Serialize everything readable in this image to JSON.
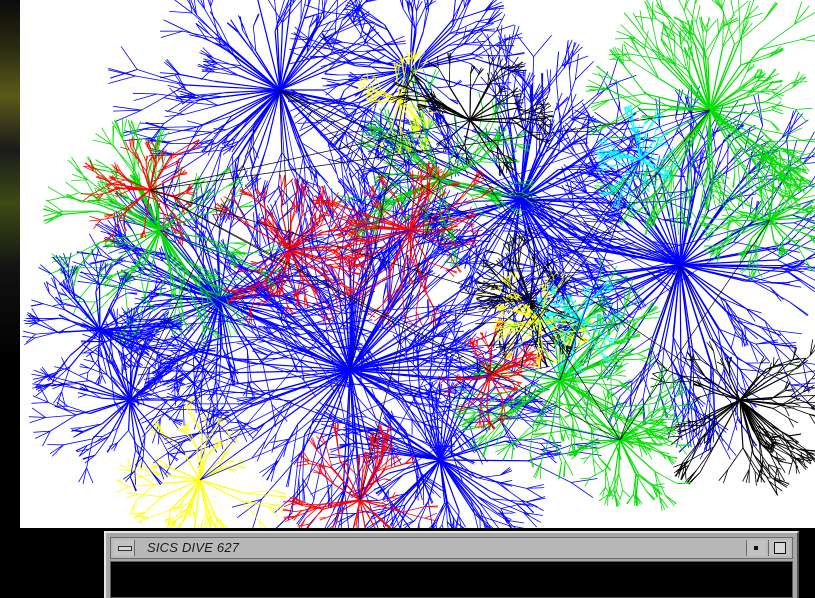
{
  "desktop": {
    "background_color": "#000000"
  },
  "visualization": {
    "background_color": "#ffffff",
    "palette": [
      "#0000ff",
      "#00dd00",
      "#ff0000",
      "#000000",
      "#ffff00",
      "#00ffff",
      "#c0c0c0"
    ]
  },
  "window": {
    "title": "SICS DIVE 627",
    "icons": {
      "menu": "window-menu-icon",
      "minimize": "minimize-icon",
      "maximize": "maximize-icon"
    },
    "content_background": "#000000",
    "frame_color": "#a8a8a8"
  }
}
